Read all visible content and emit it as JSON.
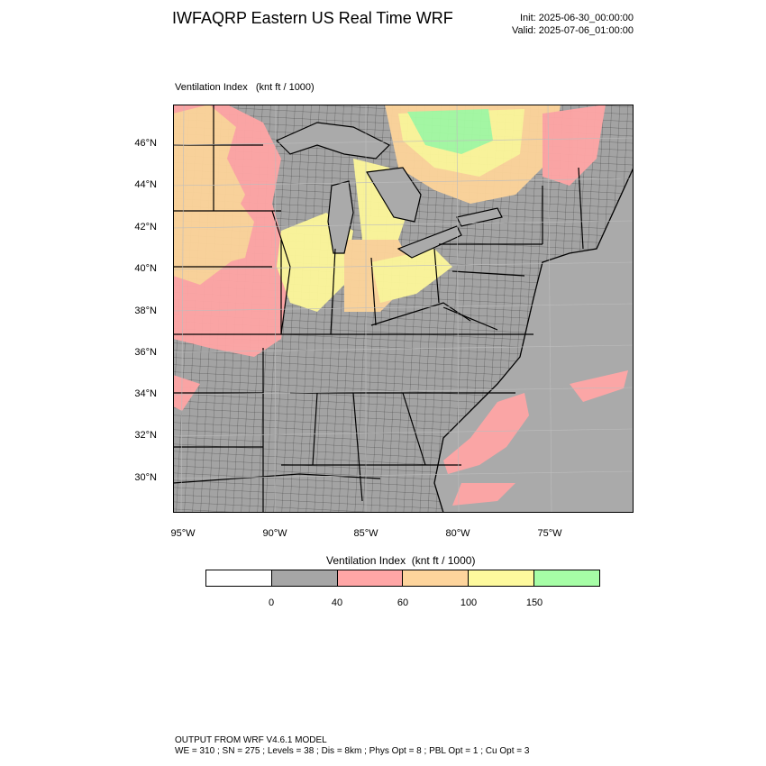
{
  "header": {
    "title": "IWFAQRP Eastern US Real Time WRF",
    "init": "Init: 2025-06-30_00:00:00",
    "valid": "Valid: 2025-07-06_01:00:00"
  },
  "plot": {
    "label": "Ventilation Index   (knt ft / 1000)"
  },
  "map": {
    "lat_labels": [
      "46°N",
      "44°N",
      "42°N",
      "40°N",
      "38°N",
      "36°N",
      "34°N",
      "32°N",
      "30°N"
    ],
    "lon_labels": [
      "95°W",
      "90°W",
      "85°W",
      "80°W",
      "75°W"
    ],
    "colors": {
      "ocean": "#a9a9a9",
      "land_low": "#a3a3a3",
      "pink": "#ffa5a5",
      "orange": "#fdd49a",
      "yellow": "#fdf79a",
      "green": "#a3fba3",
      "border": "#000000"
    }
  },
  "colorbar": {
    "title": "Ventilation Index  (knt ft / 1000)",
    "colors": [
      "#ffffff",
      "#a6a6a6",
      "#ffa6a6",
      "#fdd49c",
      "#fdf99d",
      "#a6fda6"
    ],
    "tick_labels": [
      "0",
      "40",
      "60",
      "100",
      "150"
    ]
  },
  "footer": {
    "line1": "OUTPUT FROM WRF V4.6.1 MODEL",
    "line2": "WE = 310 ; SN = 275 ; Levels = 38 ; Dis = 8km ; Phys Opt = 8 ; PBL Opt = 1 ; Cu Opt = 3"
  }
}
